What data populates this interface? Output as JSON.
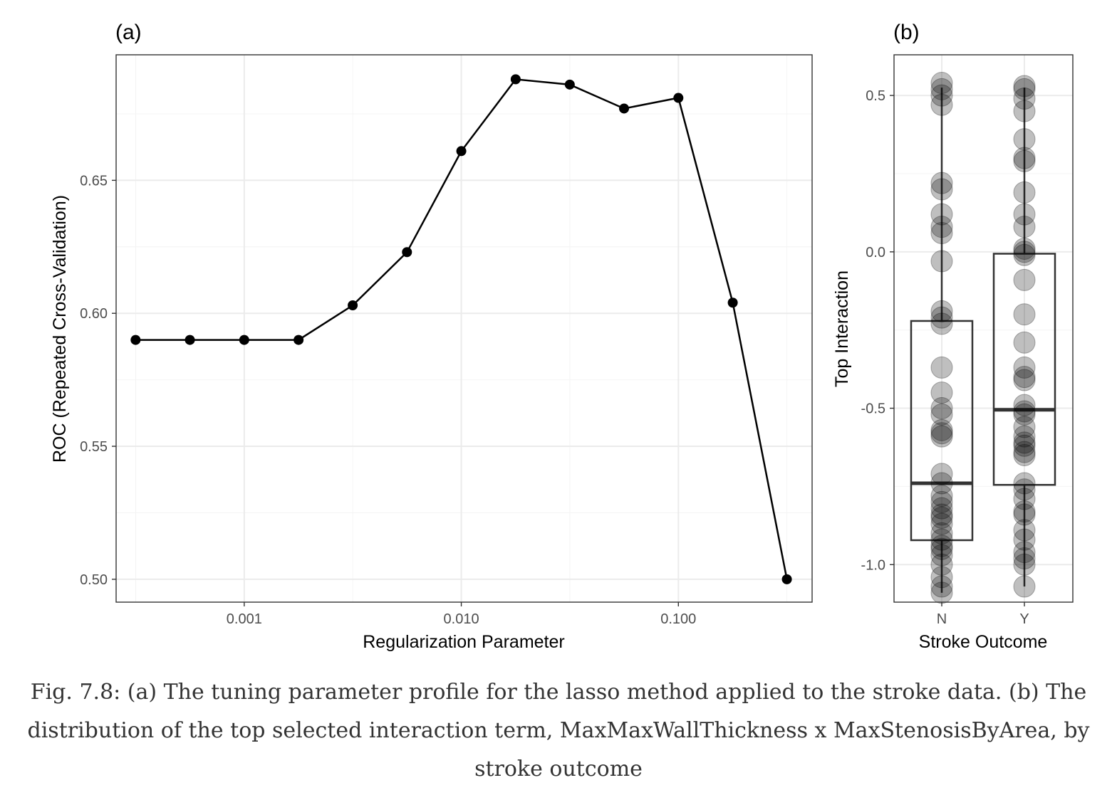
{
  "chart_data": [
    {
      "panel_label": "(a)",
      "type": "line",
      "xlabel": "Regularization Parameter",
      "ylabel": "ROC (Repeated Cross-Validation)",
      "x_scale": "log10",
      "x_ticks": [
        0.001,
        0.01,
        0.1
      ],
      "x_tick_labels": [
        "0.001",
        "0.010",
        "0.100"
      ],
      "y_ticks": [
        0.5,
        0.55,
        0.6,
        0.65
      ],
      "y_tick_labels": [
        "0.50",
        "0.55",
        "0.60",
        "0.65"
      ],
      "xlim": [
        0.000257,
        0.413
      ],
      "ylim": [
        0.4914,
        0.6972
      ],
      "grid": true,
      "x": [
        0.000316,
        0.000562,
        0.001,
        0.00178,
        0.00316,
        0.00562,
        0.01,
        0.0178,
        0.0316,
        0.0562,
        0.1,
        0.178,
        0.316
      ],
      "y": [
        0.59,
        0.59,
        0.59,
        0.59,
        0.603,
        0.623,
        0.661,
        0.688,
        0.686,
        0.677,
        0.681,
        0.604,
        0.5
      ]
    },
    {
      "panel_label": "(b)",
      "type": "box",
      "xlabel": "Stroke Outcome",
      "ylabel": "Top Interaction",
      "categories": [
        "N",
        "Y"
      ],
      "y_ticks": [
        -1.0,
        -0.5,
        0.0,
        0.5
      ],
      "y_tick_labels": [
        "-1.0",
        "-0.5",
        "0.0",
        "0.5"
      ],
      "ylim": [
        -1.12,
        0.63
      ],
      "grid": true,
      "boxes": [
        {
          "category": "N",
          "q1": -0.922,
          "median": -0.74,
          "q3": -0.221,
          "whisker_low": -1.09,
          "whisker_high": 0.525
        },
        {
          "category": "Y",
          "q1": -0.745,
          "median": -0.505,
          "q3": -0.006,
          "whisker_low": -1.07,
          "whisker_high": 0.525
        }
      ],
      "points": {
        "N": [
          0.54,
          0.52,
          0.5,
          0.47,
          0.22,
          0.2,
          0.12,
          0.08,
          0.06,
          -0.03,
          -0.19,
          -0.21,
          -0.23,
          -0.37,
          -0.45,
          -0.5,
          -0.52,
          -0.57,
          -0.58,
          -0.59,
          -0.71,
          -0.74,
          -0.78,
          -0.8,
          -0.82,
          -0.84,
          -0.85,
          -0.87,
          -0.9,
          -0.92,
          -0.94,
          -0.95,
          -0.97,
          -1.0,
          -1.04,
          -1.07,
          -1.09
        ],
        "Y": [
          0.53,
          0.52,
          0.49,
          0.45,
          0.36,
          0.3,
          0.29,
          0.19,
          0.12,
          0.08,
          0.01,
          0.0,
          -0.01,
          -0.09,
          -0.2,
          -0.29,
          -0.37,
          -0.4,
          -0.41,
          -0.49,
          -0.51,
          -0.52,
          -0.56,
          -0.59,
          -0.61,
          -0.62,
          -0.64,
          -0.65,
          -0.74,
          -0.76,
          -0.79,
          -0.83,
          -0.84,
          -0.89,
          -0.92,
          -0.96,
          -0.98,
          -1.0,
          -1.07
        ]
      },
      "point_color": "#000000",
      "point_opacity": 0.25
    }
  ],
  "caption": "Fig. 7.8: (a) The tuning parameter profile for the lasso method applied to the stroke data. (b) The distribution of the top selected interaction term, MaxMaxWallThickness x MaxStenosisByArea, by stroke outcome",
  "colors": {
    "panel_background": "#ffffff",
    "grid_major": "#ebebeb",
    "grid_minor": "#f4f4f4",
    "panel_border": "#333333",
    "line": "#000000",
    "points": "#000000"
  }
}
